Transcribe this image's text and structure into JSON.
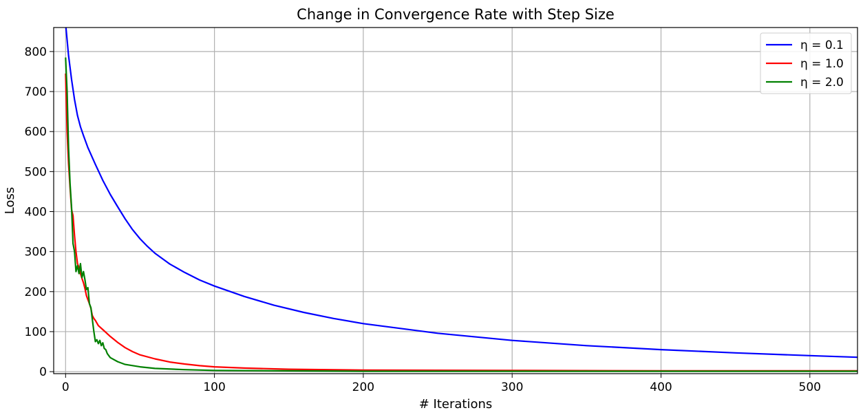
{
  "chart_data": {
    "type": "line",
    "title": "Change in Convergence Rate with Step Size",
    "xlabel": "# Iterations",
    "ylabel": "Loss",
    "xlim": [
      -8,
      532
    ],
    "ylim": [
      -5,
      860
    ],
    "xticks": [
      0,
      100,
      200,
      300,
      400,
      500
    ],
    "yticks": [
      0,
      100,
      200,
      300,
      400,
      500,
      600,
      700,
      800
    ],
    "grid": true,
    "legend_position": "top-right",
    "series": [
      {
        "name": "η = 0.1",
        "color": "#0000ff",
        "points": [
          [
            0,
            870
          ],
          [
            2,
            790
          ],
          [
            4,
            730
          ],
          [
            6,
            680
          ],
          [
            8,
            640
          ],
          [
            10,
            612
          ],
          [
            12,
            590
          ],
          [
            15,
            560
          ],
          [
            20,
            518
          ],
          [
            25,
            478
          ],
          [
            30,
            443
          ],
          [
            35,
            412
          ],
          [
            40,
            382
          ],
          [
            45,
            355
          ],
          [
            50,
            332
          ],
          [
            55,
            313
          ],
          [
            60,
            296
          ],
          [
            70,
            269
          ],
          [
            80,
            248
          ],
          [
            90,
            229
          ],
          [
            100,
            214
          ],
          [
            120,
            188
          ],
          [
            140,
            166
          ],
          [
            160,
            148
          ],
          [
            180,
            133
          ],
          [
            200,
            120
          ],
          [
            250,
            96
          ],
          [
            300,
            78
          ],
          [
            350,
            65
          ],
          [
            400,
            55
          ],
          [
            450,
            47
          ],
          [
            500,
            40
          ],
          [
            532,
            36
          ]
        ]
      },
      {
        "name": "η = 1.0",
        "color": "#ff0000",
        "points": [
          [
            0,
            745
          ],
          [
            1,
            600
          ],
          [
            2,
            520
          ],
          [
            3,
            460
          ],
          [
            4,
            405
          ],
          [
            5,
            390
          ],
          [
            6,
            340
          ],
          [
            7,
            300
          ],
          [
            8,
            270
          ],
          [
            9,
            260
          ],
          [
            10,
            245
          ],
          [
            11,
            233
          ],
          [
            12,
            222
          ],
          [
            13,
            208
          ],
          [
            14,
            190
          ],
          [
            15,
            180
          ],
          [
            16,
            170
          ],
          [
            17,
            158
          ],
          [
            18,
            140
          ],
          [
            19,
            133
          ],
          [
            20,
            128
          ],
          [
            22,
            115
          ],
          [
            25,
            105
          ],
          [
            30,
            88
          ],
          [
            35,
            73
          ],
          [
            40,
            60
          ],
          [
            45,
            50
          ],
          [
            50,
            42
          ],
          [
            60,
            32
          ],
          [
            70,
            24
          ],
          [
            80,
            19
          ],
          [
            90,
            15
          ],
          [
            100,
            12
          ],
          [
            120,
            9
          ],
          [
            150,
            6
          ],
          [
            200,
            4
          ],
          [
            300,
            3
          ],
          [
            400,
            2
          ],
          [
            532,
            2
          ]
        ]
      },
      {
        "name": "η = 2.0",
        "color": "#008000",
        "points": [
          [
            0,
            785
          ],
          [
            1,
            700
          ],
          [
            2,
            560
          ],
          [
            3,
            470
          ],
          [
            4,
            410
          ],
          [
            5,
            320
          ],
          [
            6,
            300
          ],
          [
            7,
            250
          ],
          [
            8,
            265
          ],
          [
            9,
            245
          ],
          [
            10,
            270
          ],
          [
            11,
            235
          ],
          [
            12,
            250
          ],
          [
            13,
            230
          ],
          [
            14,
            205
          ],
          [
            15,
            210
          ],
          [
            16,
            170
          ],
          [
            17,
            160
          ],
          [
            18,
            130
          ],
          [
            19,
            100
          ],
          [
            20,
            75
          ],
          [
            21,
            80
          ],
          [
            22,
            70
          ],
          [
            23,
            78
          ],
          [
            24,
            65
          ],
          [
            25,
            72
          ],
          [
            26,
            58
          ],
          [
            27,
            55
          ],
          [
            28,
            45
          ],
          [
            30,
            35
          ],
          [
            35,
            25
          ],
          [
            40,
            18
          ],
          [
            50,
            12
          ],
          [
            60,
            8
          ],
          [
            80,
            5
          ],
          [
            100,
            3
          ],
          [
            150,
            2
          ],
          [
            200,
            1
          ],
          [
            300,
            1
          ],
          [
            532,
            1
          ]
        ]
      }
    ]
  }
}
